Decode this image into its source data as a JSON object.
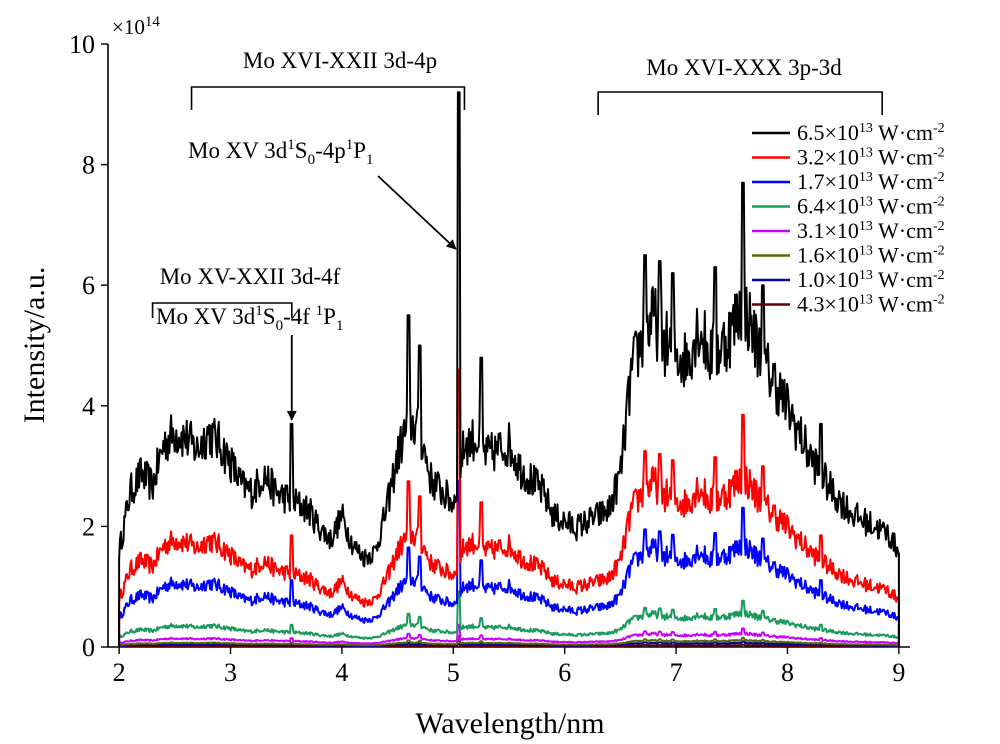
{
  "chart_data": {
    "type": "line",
    "xlabel": "Wavelength/nm",
    "ylabel": "Intensity/a.u.",
    "xlim": [
      1.9,
      9.1
    ],
    "ylim": [
      0,
      10
    ],
    "y_multiplier_base": "×10",
    "y_multiplier_exp": "14",
    "x_ticks": [
      "2",
      "3",
      "4",
      "5",
      "6",
      "7",
      "8",
      "9"
    ],
    "y_ticks": [
      "0",
      "2",
      "4",
      "6",
      "8",
      "10"
    ],
    "legend_position": "top-right",
    "legend_unit": " W·cm",
    "legend_unit_exp": "-2",
    "series": [
      {
        "mantissa": "6.5×10",
        "exp": "13",
        "color": "#000000",
        "scale": 1.0
      },
      {
        "mantissa": "3.2×10",
        "exp": "13",
        "color": "#ff0000",
        "scale": 0.5
      },
      {
        "mantissa": "1.7×10",
        "exp": "13",
        "color": "#0000ff",
        "scale": 0.3
      },
      {
        "mantissa": "6.4×10",
        "exp": "13",
        "color": "#1a9a5c",
        "scale": 0.1
      },
      {
        "mantissa": "3.1×10",
        "exp": "13",
        "color": "#cc00ff",
        "scale": 0.04
      },
      {
        "mantissa": "1.6×10",
        "exp": "13",
        "color": "#556b00",
        "scale": 0.02
      },
      {
        "mantissa": "1.0×10",
        "exp": "13",
        "color": "#0000aa",
        "scale": 0.012
      },
      {
        "mantissa": "4.3×10",
        "exp": "13",
        "color": "#660000",
        "scale": 0.005
      }
    ],
    "envelope_x": [
      2.0,
      2.1,
      2.2,
      2.3,
      2.4,
      2.5,
      2.6,
      2.7,
      2.8,
      2.9,
      3.0,
      3.1,
      3.2,
      3.3,
      3.4,
      3.5,
      3.6,
      3.7,
      3.8,
      3.9,
      4.0,
      4.1,
      4.2,
      4.3,
      4.4,
      4.5,
      4.6,
      4.7,
      4.8,
      4.9,
      5.0,
      5.1,
      5.2,
      5.3,
      5.4,
      5.5,
      5.6,
      5.7,
      5.8,
      5.9,
      6.0,
      6.1,
      6.2,
      6.3,
      6.4,
      6.5,
      6.6,
      6.7,
      6.8,
      6.9,
      7.0,
      7.1,
      7.2,
      7.3,
      7.4,
      7.5,
      7.6,
      7.7,
      7.8,
      7.9,
      8.0,
      8.1,
      8.2,
      8.3,
      8.4,
      8.5,
      8.6,
      8.7,
      8.8,
      8.9,
      9.0
    ],
    "envelope_y": [
      1.6,
      2.6,
      2.9,
      2.7,
      3.4,
      3.6,
      3.5,
      3.3,
      3.6,
      3.4,
      3.1,
      2.7,
      2.6,
      2.9,
      2.6,
      2.5,
      2.4,
      2.3,
      2.0,
      1.8,
      2.2,
      1.7,
      1.5,
      1.6,
      2.3,
      3.2,
      3.8,
      3.6,
      2.8,
      2.6,
      2.4,
      3.4,
      3.5,
      3.2,
      3.3,
      3.4,
      3.0,
      2.8,
      2.6,
      2.2,
      2.1,
      2.0,
      2.1,
      2.2,
      2.3,
      2.9,
      4.6,
      5.2,
      5.5,
      5.1,
      4.9,
      4.8,
      5.4,
      4.9,
      5.0,
      5.3,
      5.8,
      5.2,
      4.7,
      4.4,
      4.0,
      3.6,
      3.2,
      2.9,
      2.6,
      2.4,
      2.2,
      2.1,
      2.0,
      1.9,
      1.6
    ],
    "peaks": [
      {
        "x": 3.55,
        "y": 3.7
      },
      {
        "x": 4.6,
        "y": 5.5
      },
      {
        "x": 4.7,
        "y": 5.0
      },
      {
        "x": 5.05,
        "y": 9.2
      },
      {
        "x": 5.25,
        "y": 4.8
      },
      {
        "x": 6.72,
        "y": 6.5
      },
      {
        "x": 6.85,
        "y": 6.4
      },
      {
        "x": 6.97,
        "y": 6.2
      },
      {
        "x": 7.35,
        "y": 6.3
      },
      {
        "x": 7.6,
        "y": 7.7
      },
      {
        "x": 7.78,
        "y": 6.0
      },
      {
        "x": 8.3,
        "y": 3.7
      }
    ],
    "annotations": {
      "band_3d4p": {
        "x_from": 2.65,
        "x_to": 5.1,
        "pre": "Mo XVI-XXII 3d-4p"
      },
      "band_3p3d": {
        "x_from": 6.3,
        "x_to": 8.85,
        "pre": "Mo XVI-XXX 3p-3d"
      },
      "band_3d4f": {
        "x_from": 2.3,
        "x_to": 3.55,
        "pre": "Mo XV-XXII 3d-4f"
      },
      "line_4p": {
        "pre": "Mo XV 3d",
        "s1": "1",
        "mid1": "S",
        "sub1": "0",
        "mid2": "-4p",
        "s2": "1",
        "mid3": "P",
        "sub2": "1",
        "target_x": 5.05,
        "target_y": 6.6
      },
      "line_4f": {
        "pre": "Mo XV 3d",
        "s1": "1",
        "mid1": "S",
        "sub1": "0",
        "mid2": "-4f ",
        "s2": "1",
        "mid3": "P",
        "sub2": "1",
        "target_x": 3.55,
        "target_y": 3.7
      }
    }
  }
}
